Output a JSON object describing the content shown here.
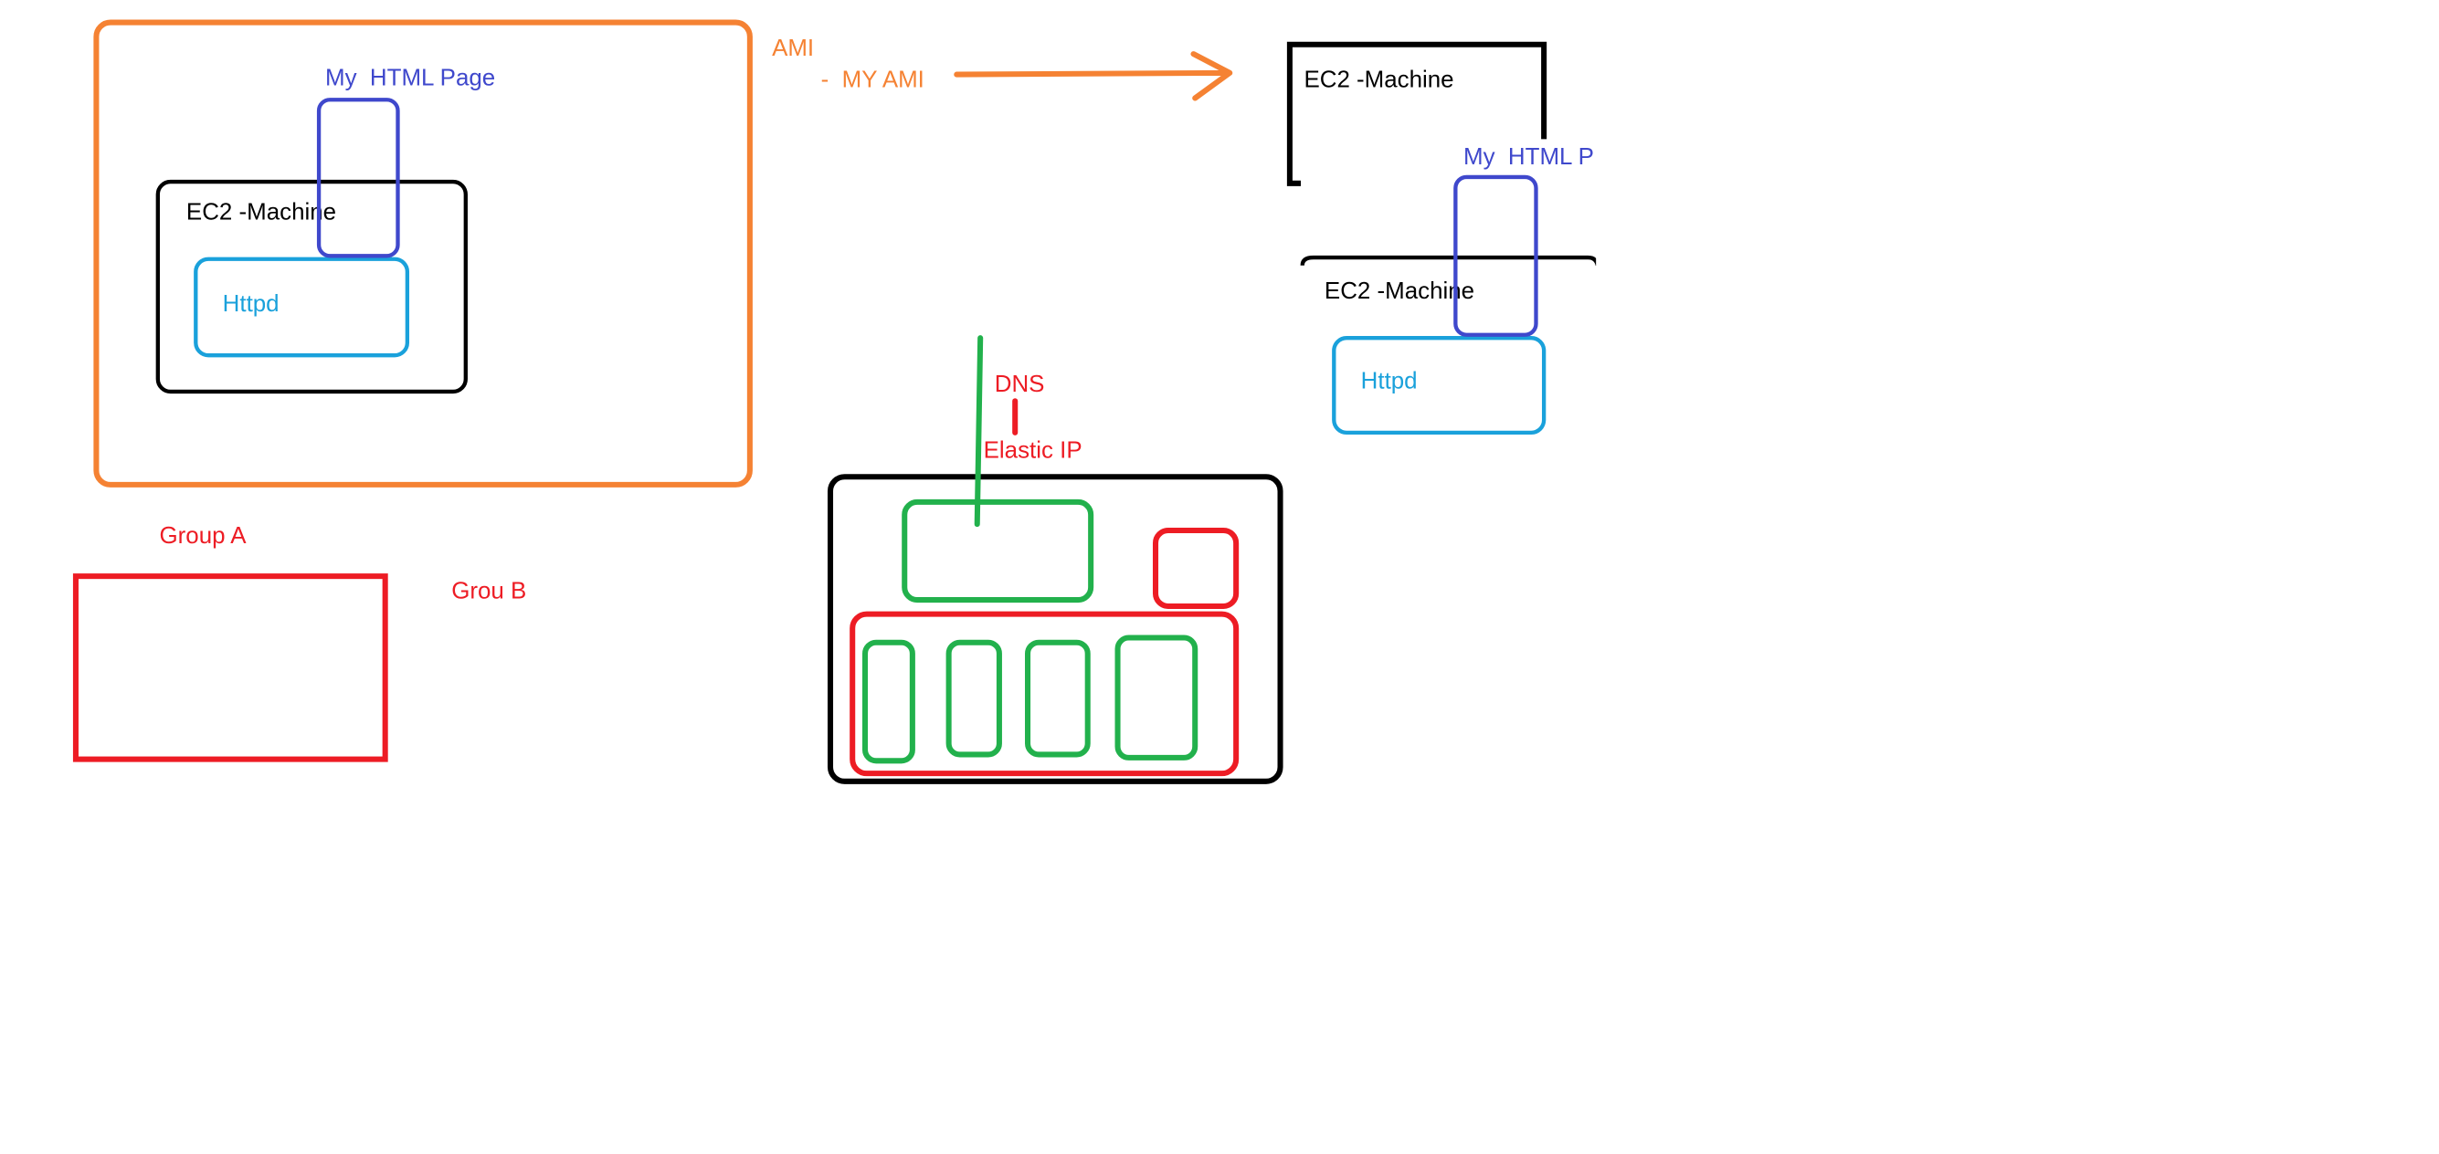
{
  "colors": {
    "orange": "#f58233",
    "black": "#000000",
    "blue": "#3f48cc",
    "cyan": "#1aa1db",
    "red": "#ed1c24",
    "green": "#22b14c"
  },
  "left_group": {
    "html_page_label": "My  HTML Page",
    "ec2_label": "EC2 -Machine",
    "httpd_label": "Httpd"
  },
  "ami": {
    "title": "AMI",
    "subtitle": "-  MY AMI"
  },
  "right_group": {
    "ec2_top_label": "EC2 -Machine",
    "html_page_label": "My  HTML P",
    "ec2_label": "EC2 -Machine",
    "httpd_label": "Httpd"
  },
  "groups": {
    "group_a": "Group A",
    "group_b": "Grou B"
  },
  "network": {
    "dns_label": "DNS",
    "elastic_ip_label": "Elastic IP"
  }
}
